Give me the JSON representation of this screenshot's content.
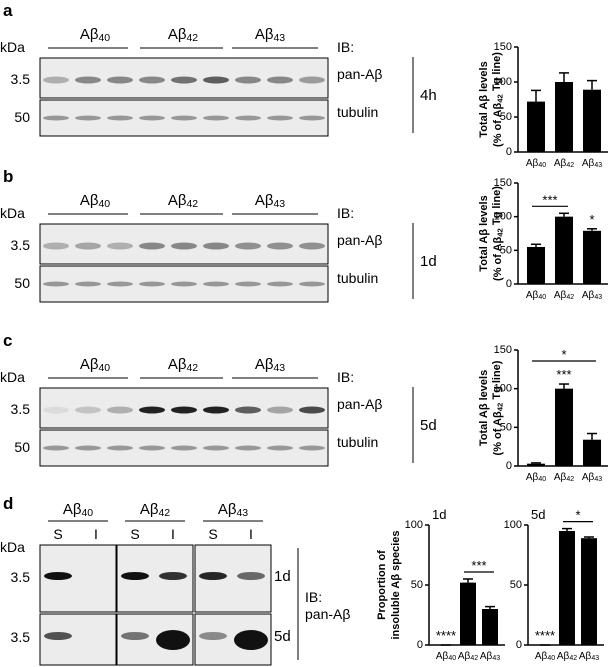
{
  "panels": [
    {
      "letter": "a",
      "kda": "kDa",
      "groups": [
        "Aβ40",
        "Aβ42",
        "Aβ43"
      ],
      "ib": "IB:",
      "rows": [
        {
          "marker": "3.5",
          "label": "pan-Aβ"
        },
        {
          "marker": "50",
          "label": "tubulin"
        }
      ],
      "time": "4h"
    },
    {
      "letter": "b",
      "kda": "kDa",
      "groups": [
        "Aβ40",
        "Aβ42",
        "Aβ43"
      ],
      "ib": "IB:",
      "rows": [
        {
          "marker": "3.5",
          "label": "pan-Aβ"
        },
        {
          "marker": "50",
          "label": "tubulin"
        }
      ],
      "time": "1d"
    },
    {
      "letter": "c",
      "kda": "kDa",
      "groups": [
        "Aβ40",
        "Aβ42",
        "Aβ43"
      ],
      "ib": "IB:",
      "rows": [
        {
          "marker": "3.5",
          "label": "pan-Aβ"
        },
        {
          "marker": "50",
          "label": "tubulin"
        }
      ],
      "time": "5d"
    }
  ],
  "panel_d": {
    "letter": "d",
    "kda": "kDa",
    "groups": [
      "Aβ40",
      "Aβ42",
      "Aβ43"
    ],
    "lanes": [
      "S",
      "I",
      "S",
      "I",
      "S",
      "I"
    ],
    "markers": [
      "3.5",
      "3.5"
    ],
    "times": [
      "1d",
      "5d"
    ],
    "ib": [
      "IB:",
      "pan-Aβ"
    ]
  },
  "chart_data": [
    {
      "type": "bar",
      "ylabel": [
        "Total Aβ levels",
        "(% of Aβ42 Tg line)"
      ],
      "categories": [
        "Aβ40",
        "Aβ42",
        "Aβ43"
      ],
      "values": [
        72,
        100,
        89
      ],
      "errors": [
        16,
        13,
        13
      ],
      "ylim": [
        0,
        150
      ],
      "yticks": [
        0,
        50,
        100,
        150
      ],
      "color": "#000000",
      "annotations": []
    },
    {
      "type": "bar",
      "ylabel": [
        "Total Aβ levels",
        "(% of Aβ42 Tg line)"
      ],
      "categories": [
        "Aβ40",
        "Aβ42",
        "Aβ43"
      ],
      "values": [
        55,
        100,
        79
      ],
      "errors": [
        4,
        5,
        3
      ],
      "ylim": [
        0,
        150
      ],
      "yticks": [
        0,
        50,
        100,
        150
      ],
      "color": "#000000",
      "annotations": [
        {
          "text": "***",
          "between": [
            0,
            1
          ]
        },
        {
          "text": "*",
          "between": [
            2,
            2
          ]
        }
      ]
    },
    {
      "type": "bar",
      "ylabel": [
        "Total Aβ levels",
        "(% of Aβ42 Tg line)"
      ],
      "categories": [
        "Aβ40",
        "Aβ42",
        "Aβ43"
      ],
      "values": [
        3,
        100,
        34
      ],
      "errors": [
        1,
        6,
        8
      ],
      "ylim": [
        0,
        150
      ],
      "yticks": [
        0,
        50,
        100,
        150
      ],
      "color": "#000000",
      "annotations": [
        {
          "text": "***",
          "between": [
            1,
            1
          ]
        },
        {
          "text": "*",
          "between": [
            0,
            2
          ]
        }
      ]
    },
    {
      "type": "bar",
      "subtitle": "1d",
      "ylabel": [
        "Proportion of",
        "insoluble Aβ species"
      ],
      "categories": [
        "Aβ40",
        "Aβ42",
        "Aβ43"
      ],
      "values": [
        0,
        52,
        30
      ],
      "errors": [
        0,
        3,
        2
      ],
      "ylim": [
        0,
        100
      ],
      "yticks": [
        0,
        50,
        100
      ],
      "color": "#000000",
      "annotations": [
        {
          "text": "****",
          "between": [
            0,
            0
          ]
        },
        {
          "text": "***",
          "between": [
            1,
            2
          ]
        }
      ]
    },
    {
      "type": "bar",
      "subtitle": "5d",
      "categories": [
        "Aβ40",
        "Aβ42",
        "Aβ43"
      ],
      "values": [
        0,
        95,
        89
      ],
      "errors": [
        0,
        2,
        1
      ],
      "ylim": [
        0,
        100
      ],
      "yticks": [
        0,
        50,
        100
      ],
      "color": "#000000",
      "annotations": [
        {
          "text": "****",
          "between": [
            0,
            0
          ]
        },
        {
          "text": "*",
          "between": [
            1,
            2
          ]
        }
      ]
    }
  ]
}
